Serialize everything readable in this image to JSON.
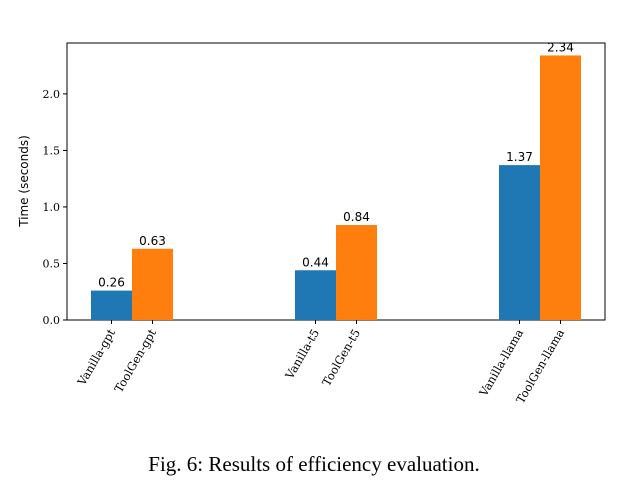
{
  "chart_data": {
    "type": "bar",
    "ylabel": "Time (seconds)",
    "xlabel": "",
    "ylim": [
      0,
      2.45
    ],
    "yticks": [
      "0.0",
      "0.5",
      "1.0",
      "1.5",
      "2.0"
    ],
    "grid": false,
    "categories": [
      "gpt",
      "t5",
      "llama"
    ],
    "bar_labels": [
      "Vanilla-gpt",
      "ToolGen-gpt",
      "Vanilla-t5",
      "ToolGen-t5",
      "Vanilla-llama",
      "ToolGen-llama"
    ],
    "series": [
      {
        "values": [
          0.26,
          0.44,
          1.37
        ],
        "color": "#1f77b4"
      },
      {
        "values": [
          0.63,
          0.84,
          2.34
        ],
        "color": "#ff7f0e"
      }
    ],
    "value_labels": [
      "0.26",
      "0.63",
      "0.44",
      "0.84",
      "1.37",
      "2.34"
    ]
  },
  "caption": "Fig. 6: Results of efficiency evaluation."
}
